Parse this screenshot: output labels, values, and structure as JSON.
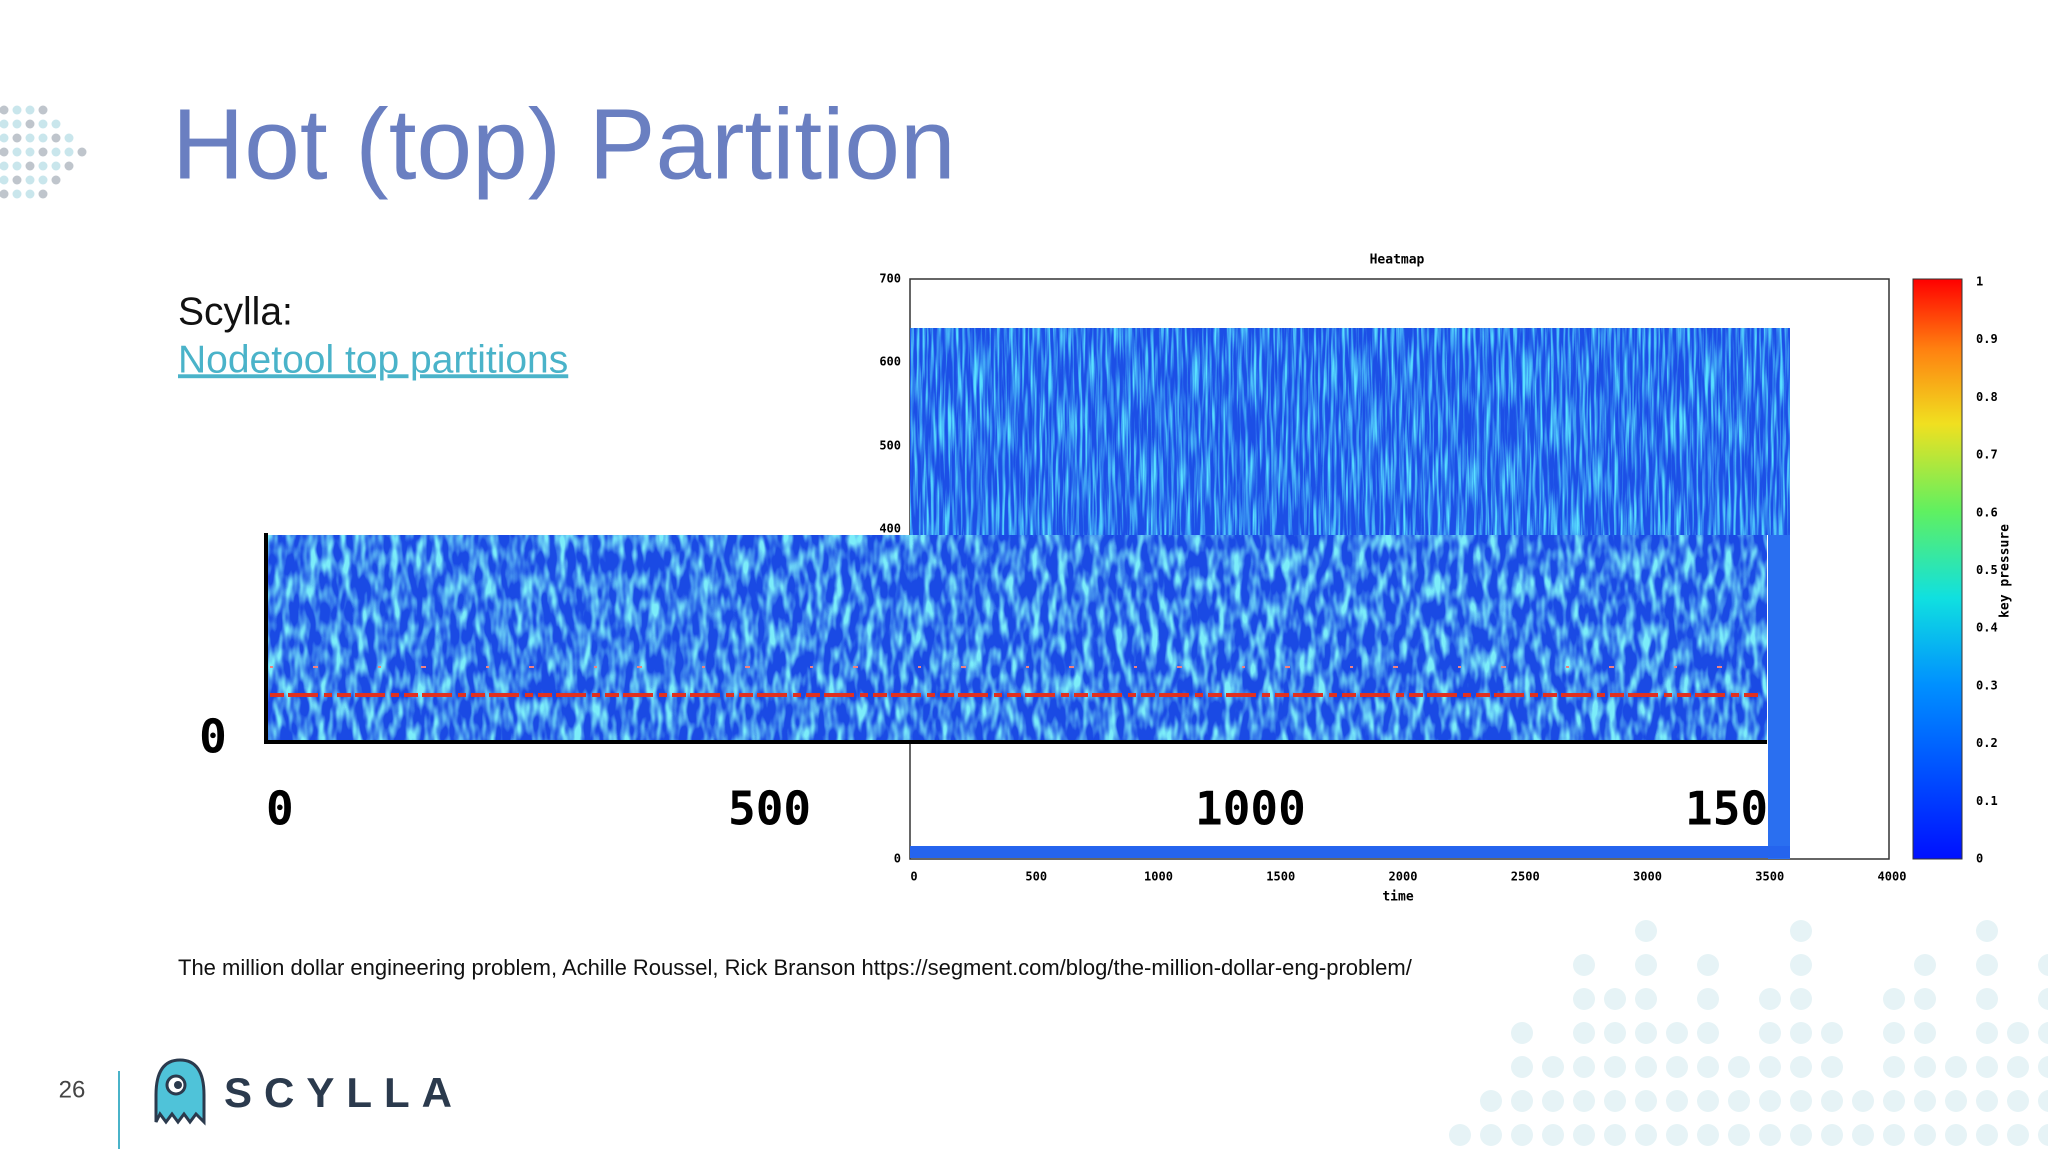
{
  "slide": {
    "title": "Hot (top) Partition",
    "heading": "Scylla:",
    "link": "Nodetool top partitions",
    "citation": "The million dollar engineering problem, Achille Roussel, Rick Branson https://segment.com/blog/the-million-dollar-eng-problem/",
    "page_number": "26",
    "logo": "SCYLLA"
  },
  "heatmap": {
    "title": "Heatmap",
    "x_label": "time",
    "colorbar_label": "key pressure",
    "yticks": [
      "700",
      "600",
      "500",
      "400",
      "0"
    ],
    "xticks": [
      "0",
      "500",
      "1000",
      "1500",
      "2000",
      "2500",
      "3000",
      "3500",
      "4000"
    ],
    "colorbar_ticks": [
      "1",
      "0.9",
      "0.8",
      "0.7",
      "0.6",
      "0.5",
      "0.4",
      "0.3",
      "0.2",
      "0.1",
      "0"
    ]
  },
  "zoom": {
    "y_label": "0",
    "xticks": [
      "0",
      "500",
      "1000",
      "150"
    ]
  }
}
